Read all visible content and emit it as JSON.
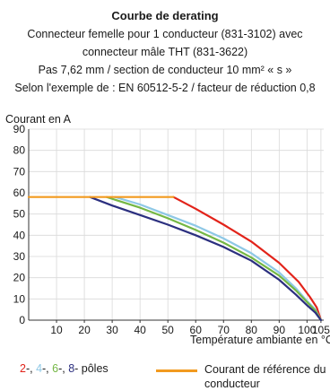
{
  "chart_data": {
    "type": "line",
    "title": "Courbe de derating",
    "subtitle_lines": [
      "Connecteur femelle pour 1 conducteur (831-3102) avec",
      "connecteur mâle THT (831-3622)",
      "Pas 7,62 mm / section de conducteur 10 mm² « s »",
      "Selon l'exemple de : EN 60512-5-2 / facteur de réduction 0,8"
    ],
    "ylabel": "Courant en A",
    "xlabel": "Température ambiante en °C",
    "xlim": [
      0,
      106
    ],
    "ylim": [
      0,
      90
    ],
    "x_ticks": [
      10,
      20,
      30,
      40,
      50,
      60,
      70,
      80,
      90,
      100,
      105
    ],
    "y_ticks": [
      0,
      10,
      20,
      30,
      40,
      50,
      60,
      70,
      80,
      90
    ],
    "grid": true,
    "series": [
      {
        "name": "2",
        "color": "#e2231a",
        "points": [
          [
            52,
            58
          ],
          [
            60,
            52.5
          ],
          [
            70,
            45
          ],
          [
            80,
            37
          ],
          [
            90,
            27
          ],
          [
            97,
            18
          ],
          [
            101,
            11
          ],
          [
            103.5,
            6
          ],
          [
            105,
            0
          ]
        ]
      },
      {
        "name": "4",
        "color": "#8ec8e6",
        "points": [
          [
            31,
            58
          ],
          [
            40,
            54.5
          ],
          [
            50,
            49.5
          ],
          [
            60,
            44.5
          ],
          [
            70,
            38.5
          ],
          [
            80,
            31.5
          ],
          [
            90,
            22.5
          ],
          [
            96,
            15
          ],
          [
            100,
            9
          ],
          [
            103,
            5
          ],
          [
            105,
            0
          ]
        ]
      },
      {
        "name": "6",
        "color": "#74b744",
        "points": [
          [
            28,
            58
          ],
          [
            40,
            53
          ],
          [
            50,
            48
          ],
          [
            60,
            42.5
          ],
          [
            70,
            36.5
          ],
          [
            80,
            29.5
          ],
          [
            90,
            21
          ],
          [
            96,
            14
          ],
          [
            100,
            8.5
          ],
          [
            103,
            4.5
          ],
          [
            105,
            0
          ]
        ]
      },
      {
        "name": "8",
        "color": "#2b2f7f",
        "points": [
          [
            22,
            58
          ],
          [
            30,
            54
          ],
          [
            40,
            49.5
          ],
          [
            50,
            45
          ],
          [
            60,
            40
          ],
          [
            70,
            34.5
          ],
          [
            80,
            28
          ],
          [
            90,
            19
          ],
          [
            96,
            12
          ],
          [
            100,
            7
          ],
          [
            103,
            3.5
          ],
          [
            105,
            0
          ]
        ]
      },
      {
        "name": "Courant de référence du conducteur",
        "color": "#f29a1f",
        "points": [
          [
            0,
            58
          ],
          [
            52,
            58
          ]
        ]
      }
    ],
    "legend": {
      "poles_items": [
        {
          "text": "2",
          "color": "#e2231a"
        },
        {
          "text": "4",
          "color": "#8ec8e6"
        },
        {
          "text": "6",
          "color": "#74b744"
        },
        {
          "text": "8",
          "color": "#2b2f7f"
        }
      ],
      "poles_suffix": "pôles",
      "reference_label": "Courant de référence du conducteur",
      "reference_color": "#f29a1f"
    }
  }
}
